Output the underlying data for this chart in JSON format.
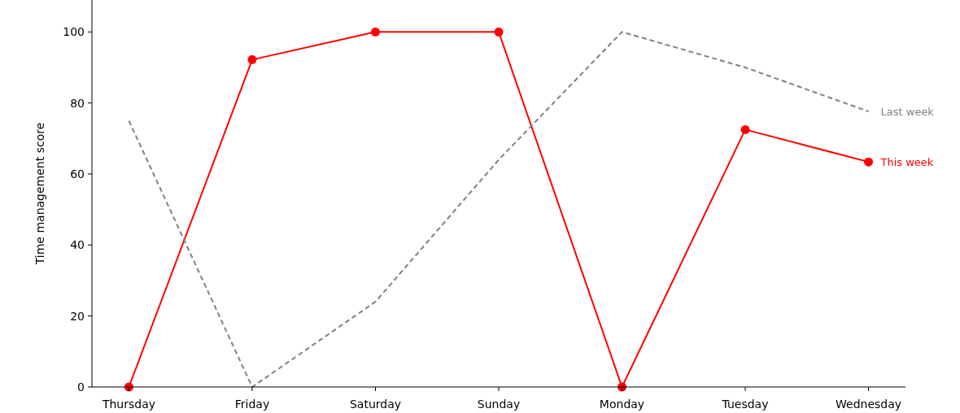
{
  "chart_data": {
    "type": "line",
    "ylabel": "Time management score",
    "categories": [
      "Thursday",
      "Friday",
      "Saturday",
      "Sunday",
      "Monday",
      "Tuesday",
      "Wednesday"
    ],
    "series": [
      {
        "name": "This week",
        "color": "#ff0000",
        "marker": "circle",
        "line_style": "solid",
        "values": [
          0,
          92.2,
          100,
          100,
          0,
          72.5,
          63.4
        ]
      },
      {
        "name": "Last week",
        "color": "#808080",
        "marker": "none",
        "line_style": "dashed",
        "values": [
          75,
          0,
          24,
          64,
          100,
          90,
          77.6
        ]
      }
    ],
    "ylim": [
      0,
      109
    ],
    "yticks": [
      0,
      20,
      40,
      60,
      80,
      100
    ],
    "grid": false,
    "legend": false
  }
}
